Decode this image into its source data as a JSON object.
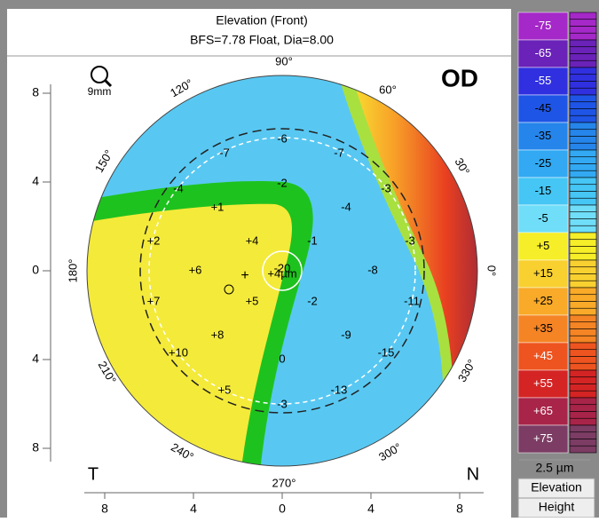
{
  "header": {
    "title": "Elevation (Front)",
    "subtitle": "BFS=7.78 Float, Dia=8.00"
  },
  "eye": "OD",
  "zoom_label": "9mm",
  "angle_labels": [
    "90°",
    "60°",
    "30°",
    "0°",
    "330°",
    "300°",
    "270°",
    "240°",
    "210°",
    "180°",
    "150°",
    "120°"
  ],
  "y_axis_labels": [
    "8",
    "4",
    "0",
    "4",
    "8"
  ],
  "x_axis_labels": [
    "8",
    "4",
    "0",
    "4",
    "8"
  ],
  "corner_labels": [
    "T",
    "N"
  ],
  "map_values": [
    "-6",
    "-7",
    "-7",
    "-4",
    "-2",
    "-3",
    "+1",
    "-4",
    "+2",
    "+4",
    "-1",
    "-3",
    "+6",
    "-8",
    "+7",
    "+5",
    "-2",
    "-11",
    "+8",
    "-9",
    "+10",
    "0",
    "-15",
    "+5",
    "-13",
    "-3"
  ],
  "center_values": [
    "-20",
    "+4µm"
  ],
  "scale": {
    "levels": [
      {
        "label": "-75",
        "color": "#a528c8"
      },
      {
        "label": "-65",
        "color": "#6a22b8"
      },
      {
        "label": "-55",
        "color": "#3030e0"
      },
      {
        "label": "-45",
        "color": "#1f55e6"
      },
      {
        "label": "-35",
        "color": "#2585ea"
      },
      {
        "label": "-25",
        "color": "#32a9f2"
      },
      {
        "label": "-15",
        "color": "#45c6f4"
      },
      {
        "label": "-5",
        "color": "#70def8"
      },
      {
        "label": "+5",
        "color": "#f6ee28"
      },
      {
        "label": "+15",
        "color": "#f8d030"
      },
      {
        "label": "+25",
        "color": "#f8aa28"
      },
      {
        "label": "+35",
        "color": "#f58424"
      },
      {
        "label": "+45",
        "color": "#ee5420"
      },
      {
        "label": "+55",
        "color": "#d42424"
      },
      {
        "label": "+65",
        "color": "#a82448"
      },
      {
        "label": "+75",
        "color": "#7c3c64"
      }
    ],
    "step": "2.5 µm",
    "mode": "Elevation",
    "kind": "Height"
  }
}
